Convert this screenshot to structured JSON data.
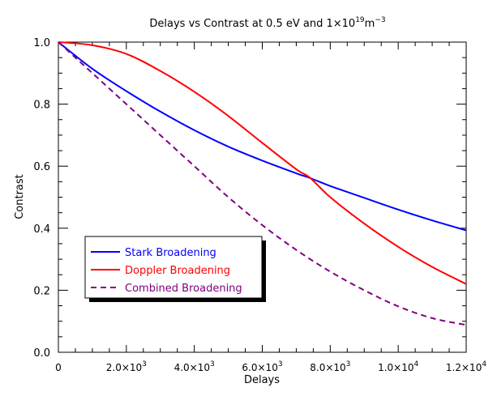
{
  "chart_data": {
    "type": "line",
    "title": {
      "main": "Delays vs Contrast at 0.5 eV and 1×10",
      "sup": "19",
      "mid": "m",
      "sup2": "−3"
    },
    "xlabel": "Delays",
    "ylabel": "Contrast",
    "xlim": [
      0,
      12000
    ],
    "ylim": [
      0,
      1
    ],
    "x_ticks": [
      {
        "value": 0,
        "base": "0",
        "exp": ""
      },
      {
        "value": 2000,
        "base": "2.0×10",
        "exp": "3"
      },
      {
        "value": 4000,
        "base": "4.0×10",
        "exp": "3"
      },
      {
        "value": 6000,
        "base": "6.0×10",
        "exp": "3"
      },
      {
        "value": 8000,
        "base": "8.0×10",
        "exp": "3"
      },
      {
        "value": 10000,
        "base": "1.0×10",
        "exp": "4"
      },
      {
        "value": 12000,
        "base": "1.2×10",
        "exp": "4"
      }
    ],
    "x_minor_step": 500,
    "y_ticks": [
      {
        "value": 0.0,
        "label": "0.0"
      },
      {
        "value": 0.2,
        "label": "0.2"
      },
      {
        "value": 0.4,
        "label": "0.4"
      },
      {
        "value": 0.6,
        "label": "0.6"
      },
      {
        "value": 0.8,
        "label": "0.8"
      },
      {
        "value": 1.0,
        "label": "1.0"
      }
    ],
    "y_minor_step": 0.05,
    "grid": false,
    "legend_position": "bottom-left",
    "series": [
      {
        "name": "Stark Broadening",
        "color": "#0000ff",
        "dash": "solid",
        "x": [
          0,
          1000,
          2000,
          3000,
          4000,
          5000,
          6000,
          7000,
          7400,
          8000,
          9000,
          10000,
          11000,
          12000
        ],
        "y": [
          1.0,
          0.914,
          0.842,
          0.776,
          0.716,
          0.663,
          0.618,
          0.577,
          0.562,
          0.536,
          0.498,
          0.46,
          0.425,
          0.393
        ]
      },
      {
        "name": "Doppler Broadening",
        "color": "#ff0000",
        "dash": "solid",
        "x": [
          0,
          1000,
          2000,
          3000,
          4000,
          5000,
          6000,
          7000,
          7400,
          8000,
          9000,
          10000,
          11000,
          12000
        ],
        "y": [
          1.0,
          0.99,
          0.962,
          0.907,
          0.84,
          0.762,
          0.675,
          0.59,
          0.563,
          0.5,
          0.415,
          0.34,
          0.275,
          0.22
        ]
      },
      {
        "name": "Combined Broadening",
        "color": "#800080",
        "dash": "dashed",
        "x": [
          0,
          1000,
          2000,
          3000,
          4000,
          5000,
          6000,
          7000,
          8000,
          9000,
          10000,
          11000,
          12000
        ],
        "y": [
          1.0,
          0.9,
          0.8,
          0.7,
          0.6,
          0.5,
          0.41,
          0.33,
          0.26,
          0.2,
          0.148,
          0.11,
          0.088
        ]
      }
    ]
  }
}
